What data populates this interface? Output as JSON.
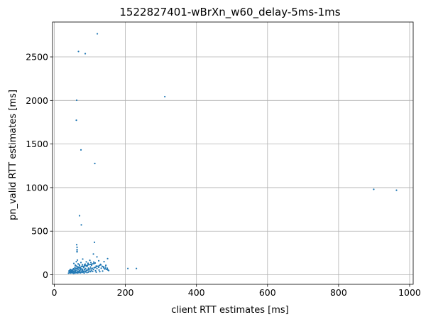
{
  "chart_data": {
    "type": "scatter",
    "title": "1522827401-wBrXn_w60_delay-5ms-1ms",
    "xlabel": "client RTT estimates [ms]",
    "ylabel": "pn_valid RTT estimates [ms]",
    "xlim": [
      -5,
      1010
    ],
    "ylim": [
      -110,
      2900
    ],
    "xticks": [
      0,
      200,
      400,
      600,
      800,
      1000
    ],
    "yticks": [
      0,
      500,
      1000,
      1500,
      2000,
      2500
    ],
    "grid": true,
    "color": "#1f77b4",
    "points": [
      [
        121,
        2765
      ],
      [
        68,
        2562
      ],
      [
        87,
        2537
      ],
      [
        311,
        2044
      ],
      [
        63,
        2003
      ],
      [
        62,
        1773
      ],
      [
        75,
        1433
      ],
      [
        114,
        1277
      ],
      [
        899,
        980
      ],
      [
        963,
        970
      ],
      [
        71,
        677
      ],
      [
        76,
        572
      ],
      [
        113,
        372
      ],
      [
        63,
        345
      ],
      [
        64,
        315
      ],
      [
        64,
        290
      ],
      [
        64,
        272
      ],
      [
        64,
        262
      ],
      [
        110,
        238
      ],
      [
        120,
        205
      ],
      [
        150,
        185
      ],
      [
        80,
        180
      ],
      [
        65,
        168
      ],
      [
        100,
        165
      ],
      [
        125,
        160
      ],
      [
        140,
        150
      ],
      [
        62,
        150
      ],
      [
        90,
        148
      ],
      [
        75,
        140
      ],
      [
        115,
        135
      ],
      [
        55,
        130
      ],
      [
        95,
        125
      ],
      [
        130,
        120
      ],
      [
        70,
        118
      ],
      [
        85,
        112
      ],
      [
        105,
        110
      ],
      [
        145,
        108
      ],
      [
        60,
        104
      ],
      [
        118,
        100
      ],
      [
        78,
        98
      ],
      [
        92,
        95
      ],
      [
        138,
        92
      ],
      [
        66,
        90
      ],
      [
        102,
        88
      ],
      [
        125,
        86
      ],
      [
        58,
        84
      ],
      [
        83,
        82
      ],
      [
        112,
        80
      ],
      [
        72,
        78
      ],
      [
        96,
        76
      ],
      [
        132,
        75
      ],
      [
        62,
        74
      ],
      [
        88,
        72
      ],
      [
        120,
        70
      ],
      [
        207,
        72
      ],
      [
        231,
        72
      ],
      [
        54,
        70
      ],
      [
        76,
        68
      ],
      [
        99,
        66
      ],
      [
        142,
        65
      ],
      [
        68,
        64
      ],
      [
        86,
        62
      ],
      [
        110,
        60
      ],
      [
        150,
        58
      ],
      [
        58,
        58
      ],
      [
        74,
        56
      ],
      [
        94,
        55
      ],
      [
        126,
        54
      ],
      [
        64,
        54
      ],
      [
        80,
        52
      ],
      [
        104,
        50
      ],
      [
        52,
        50
      ],
      [
        70,
        48
      ],
      [
        90,
        47
      ],
      [
        116,
        46
      ],
      [
        60,
        46
      ],
      [
        78,
        44
      ],
      [
        98,
        43
      ],
      [
        136,
        42
      ],
      [
        56,
        42
      ],
      [
        72,
        40
      ],
      [
        86,
        40
      ],
      [
        108,
        39
      ],
      [
        50,
        38
      ],
      [
        66,
        38
      ],
      [
        82,
        37
      ],
      [
        102,
        36
      ],
      [
        128,
        36
      ],
      [
        54,
        35
      ],
      [
        68,
        34
      ],
      [
        88,
        33
      ],
      [
        46,
        34
      ],
      [
        60,
        32
      ],
      [
        76,
        31
      ],
      [
        96,
        30
      ],
      [
        118,
        30
      ],
      [
        50,
        29
      ],
      [
        64,
        28
      ],
      [
        80,
        27
      ],
      [
        44,
        28
      ],
      [
        56,
        26
      ],
      [
        70,
        25
      ],
      [
        92,
        25
      ],
      [
        48,
        24
      ],
      [
        62,
        23
      ],
      [
        74,
        22
      ],
      [
        42,
        22
      ],
      [
        52,
        21
      ],
      [
        66,
        20
      ],
      [
        84,
        20
      ],
      [
        46,
        19
      ],
      [
        58,
        18
      ],
      [
        40,
        18
      ],
      [
        54,
        16
      ],
      [
        45,
        60
      ],
      [
        48,
        55
      ],
      [
        43,
        48
      ],
      [
        47,
        45
      ],
      [
        41,
        42
      ],
      [
        49,
        40
      ],
      [
        44,
        36
      ],
      [
        51,
        52
      ],
      [
        53,
        62
      ],
      [
        57,
        66
      ],
      [
        61,
        70
      ],
      [
        65,
        74
      ],
      [
        69,
        82
      ],
      [
        73,
        86
      ],
      [
        77,
        92
      ],
      [
        81,
        96
      ],
      [
        85,
        100
      ],
      [
        89,
        104
      ],
      [
        93,
        108
      ],
      [
        97,
        114
      ],
      [
        101,
        118
      ],
      [
        105,
        122
      ],
      [
        109,
        126
      ],
      [
        113,
        130
      ],
      [
        71,
        105
      ],
      [
        79,
        115
      ],
      [
        87,
        122
      ],
      [
        95,
        132
      ],
      [
        103,
        140
      ],
      [
        111,
        145
      ],
      [
        67,
        125
      ],
      [
        59,
        110
      ],
      [
        63,
        98
      ],
      [
        67,
        88
      ],
      [
        73,
        72
      ],
      [
        79,
        64
      ],
      [
        85,
        58
      ],
      [
        91,
        52
      ],
      [
        97,
        60
      ],
      [
        103,
        68
      ],
      [
        107,
        74
      ],
      [
        115,
        84
      ],
      [
        119,
        92
      ],
      [
        123,
        98
      ],
      [
        127,
        106
      ],
      [
        131,
        112
      ],
      [
        135,
        96
      ],
      [
        139,
        80
      ],
      [
        143,
        70
      ],
      [
        147,
        62
      ],
      [
        151,
        55
      ],
      [
        153,
        48
      ],
      [
        149,
        75
      ],
      [
        144,
        88
      ]
    ]
  }
}
